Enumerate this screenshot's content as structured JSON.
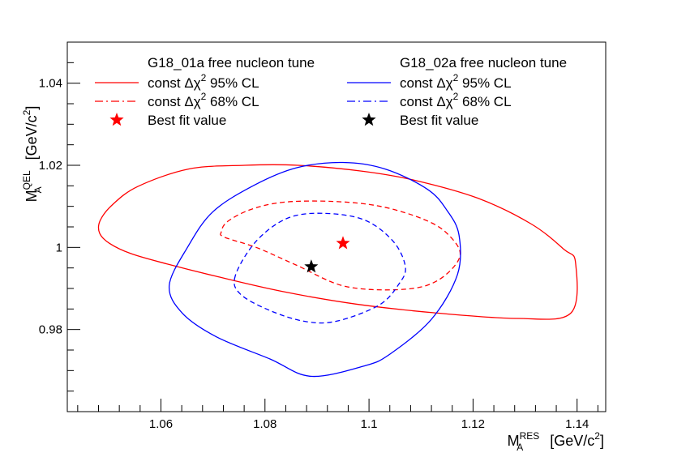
{
  "chart_data": {
    "type": "line",
    "title": "",
    "xlabel": {
      "main": "M",
      "sub": "A",
      "sup": "RES",
      "unit": " [GeV/c",
      "unit_sup": "2",
      "close": "]"
    },
    "ylabel": {
      "main": "M",
      "sub": "A",
      "sup": "QEL",
      "unit": " [GeV/c",
      "unit_sup": "2",
      "close": "]"
    },
    "xlim": [
      1.042,
      1.1455
    ],
    "ylim": [
      0.96,
      1.05
    ],
    "x_ticks": [
      1.06,
      1.08,
      1.1,
      1.12,
      1.14
    ],
    "x_tick_labels": [
      "1.06",
      "1.08",
      "1.1",
      "1.12",
      "1.14"
    ],
    "y_ticks": [
      0.98,
      1.0,
      1.02,
      1.04
    ],
    "y_tick_labels": [
      "0.98",
      "1",
      "1.02",
      "1.04"
    ],
    "legend": {
      "placement": "top",
      "columns": [
        {
          "header": "G18_01a free nucleon tune",
          "entries": [
            {
              "pre": "const Δχ",
              "sup": "2",
              "post": " 95% CL",
              "style": "solid",
              "color": "#ff0000"
            },
            {
              "pre": "const Δχ",
              "sup": "2",
              "post": " 68% CL",
              "style": "dashed",
              "color": "#ff0000"
            },
            {
              "pre": "Best fit value",
              "sup": "",
              "post": "",
              "style": "star",
              "color": "#ff0000"
            }
          ]
        },
        {
          "header": "G18_02a free nucleon tune",
          "entries": [
            {
              "pre": "const Δχ",
              "sup": "2",
              "post": " 95% CL",
              "style": "solid",
              "color": "#0000ff"
            },
            {
              "pre": "const Δχ",
              "sup": "2",
              "post": " 68% CL",
              "style": "dashed",
              "color": "#0000ff"
            },
            {
              "pre": "Best fit value",
              "sup": "",
              "post": "",
              "style": "star",
              "color": "#000000"
            }
          ]
        }
      ]
    },
    "series": [
      {
        "name": "G18_01a const Δχ2 95% CL",
        "style": "solid",
        "color": "#ff0000",
        "x": [
          1.0483,
          1.0482,
          1.0501,
          1.0542,
          1.0611,
          1.0705,
          1.0832,
          1.0975,
          1.1123,
          1.1285,
          1.1388,
          1.1397,
          1.1375,
          1.1312,
          1.1209,
          1.1086,
          1.0985,
          1.0863,
          1.0761,
          1.0653,
          1.0555,
          1.0506,
          1.0483
        ],
        "y": [
          1.0065,
          1.0035,
          1.001,
          0.9985,
          0.996,
          0.993,
          0.9893,
          0.9862,
          0.9841,
          0.9827,
          0.984,
          0.9963,
          0.9995,
          1.0057,
          1.012,
          1.0164,
          1.0186,
          1.02,
          1.02,
          1.0191,
          1.0148,
          1.0103,
          1.0065
        ]
      },
      {
        "name": "G18_01a const Δχ2 68% CL",
        "style": "dashed",
        "color": "#ff0000",
        "x": [
          1.0716,
          1.0722,
          1.0785,
          1.086,
          1.0955,
          1.1068,
          1.1134,
          1.1175,
          1.115,
          1.1104,
          1.1022,
          1.0931,
          1.0835,
          1.0772,
          1.0728,
          1.0716
        ],
        "y": [
          1.0038,
          1.0025,
          0.9999,
          0.9957,
          0.9905,
          0.9898,
          0.9921,
          0.998,
          1.0034,
          1.0069,
          1.01,
          1.0112,
          1.011,
          1.0092,
          1.0063,
          1.0038
        ]
      },
      {
        "name": "G18_02a const Δχ2 95% CL",
        "style": "solid",
        "color": "#0000ff",
        "x": [
          1.0616,
          1.0641,
          1.0707,
          1.081,
          1.0888,
          1.099,
          1.104,
          1.112,
          1.117,
          1.1173,
          1.115,
          1.1112,
          1.1031,
          1.095,
          1.0861,
          1.078,
          1.07,
          1.0651,
          1.0616
        ],
        "y": [
          0.9907,
          0.984,
          0.9782,
          0.9728,
          0.9686,
          0.9711,
          0.974,
          0.9825,
          0.9934,
          1.003,
          1.009,
          1.0142,
          1.0191,
          1.0207,
          1.0194,
          1.0152,
          1.0087,
          1.0,
          0.9907
        ]
      },
      {
        "name": "G18_02a const Δχ2 68% CL",
        "style": "dashed",
        "color": "#0000ff",
        "x": [
          1.0743,
          1.0753,
          1.0812,
          1.088,
          1.094,
          1.102,
          1.1057,
          1.107,
          1.1047,
          1.0991,
          1.0912,
          1.0843,
          1.0783,
          1.0743
        ],
        "y": [
          0.9931,
          0.9886,
          0.9845,
          0.9819,
          0.9821,
          0.986,
          0.991,
          0.9952,
          1.0014,
          1.0067,
          1.0083,
          1.0071,
          1.0015,
          0.9931
        ]
      }
    ],
    "best_fit": [
      {
        "name": "G18_01a best fit",
        "x": 1.095,
        "y": 1.001,
        "color": "#ff0000"
      },
      {
        "name": "G18_02a best fit",
        "x": 1.0889,
        "y": 0.9953,
        "color": "#000000"
      }
    ]
  }
}
